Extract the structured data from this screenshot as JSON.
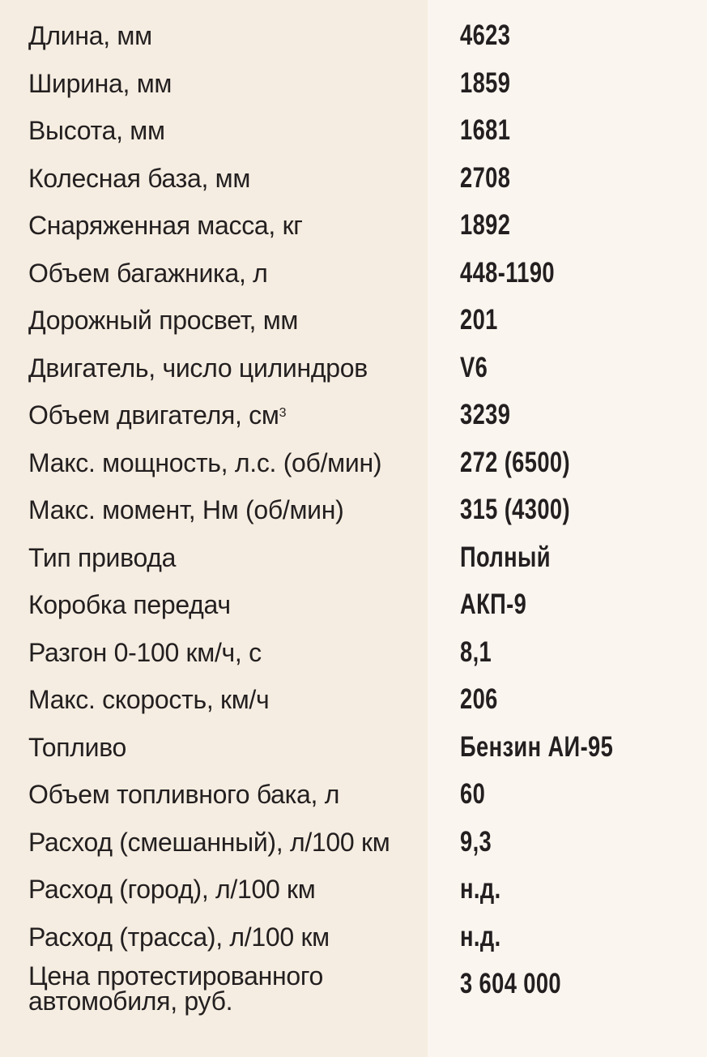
{
  "specs": [
    {
      "label": "Длина, мм",
      "value": "4623"
    },
    {
      "label": "Ширина, мм",
      "value": "1859"
    },
    {
      "label": "Высота, мм",
      "value": "1681"
    },
    {
      "label": "Колесная база, мм",
      "value": "2708"
    },
    {
      "label": "Снаряженная масса, кг",
      "value": "1892"
    },
    {
      "label": "Объем багажника, л",
      "value": "448-1190"
    },
    {
      "label": "Дорожный просвет, мм",
      "value": "201"
    },
    {
      "label": "Двигатель, число цилиндров",
      "value": "V6"
    },
    {
      "label": "Объем двигателя, см",
      "label_sup": "3",
      "value": "3239"
    },
    {
      "label": "Макс. мощность, л.с. (об/мин)",
      "value": "272 (6500)"
    },
    {
      "label": "Макс. момент, Нм (об/мин)",
      "value": "315 (4300)"
    },
    {
      "label": "Тип привода",
      "value": "Полный"
    },
    {
      "label": "Коробка передач",
      "value": "АКП-9"
    },
    {
      "label": "Разгон 0-100 км/ч, с",
      "value": "8,1"
    },
    {
      "label": "Макс. скорость, км/ч",
      "value": "206"
    },
    {
      "label": "Топливо",
      "value": "Бензин АИ-95"
    },
    {
      "label": "Объем топливного бака, л",
      "value": "60"
    },
    {
      "label": "Расход (смешанный), л/100 км",
      "value": "9,3"
    },
    {
      "label": "Расход (город), л/100 км",
      "value": "н.д."
    },
    {
      "label": "Расход (трасса), л/100 км",
      "value": "н.д."
    },
    {
      "label_line1": "Цена протестированного",
      "label_line2": "автомобиля, руб.",
      "value": "3 604 000"
    }
  ],
  "colors": {
    "label_column_bg": "#f5ede1",
    "value_column_bg": "#faf5ee",
    "text": "#231f20"
  }
}
